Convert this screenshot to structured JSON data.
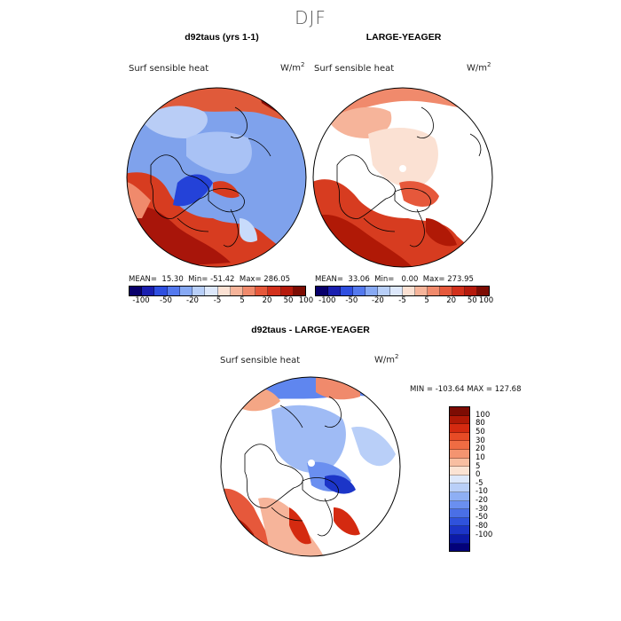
{
  "season": "DJF",
  "variable": "Surf sensible heat",
  "units_base": "W/m",
  "units_exp": "2",
  "panels": [
    {
      "title": "d92taus (yrs 1-1)",
      "mean": "15.30",
      "min": "-51.42",
      "max": "286.05"
    },
    {
      "title": "LARGE-YEAGER",
      "mean": "33.06",
      "min": "0.00",
      "max": "273.95"
    }
  ],
  "difference": {
    "title": "d92taus - LARGE-YEAGER",
    "min": "-103.64",
    "max": "127.68"
  },
  "abs_colorbar": {
    "colors": [
      "#08006b",
      "#1a1fb0",
      "#2f4fe0",
      "#5479ee",
      "#87a9f4",
      "#b8cff8",
      "#dde8fb",
      "#fbe1d3",
      "#f6b49a",
      "#f08a6c",
      "#e6583b",
      "#d2301b",
      "#b51a0c",
      "#7d0c03"
    ],
    "tick_labels": [
      "-100",
      "-50",
      "-20",
      "-5",
      "5",
      "20",
      "50",
      "100"
    ]
  },
  "diff_colorbar": {
    "colors": [
      "#7d0c03",
      "#b01906",
      "#d42a10",
      "#e74b26",
      "#ef6c43",
      "#f49470",
      "#f8bea1",
      "#fbe3d3",
      "#dde8fb",
      "#b9cff8",
      "#8eaff4",
      "#6a8ff0",
      "#4a6fe6",
      "#2f52dc",
      "#1c35c8",
      "#0c1aa8",
      "#03017a"
    ],
    "tick_labels": [
      "100",
      "80",
      "50",
      "30",
      "20",
      "10",
      "5",
      "0",
      "-5",
      "-10",
      "-20",
      "-30",
      "-50",
      "-80",
      "-100"
    ]
  }
}
